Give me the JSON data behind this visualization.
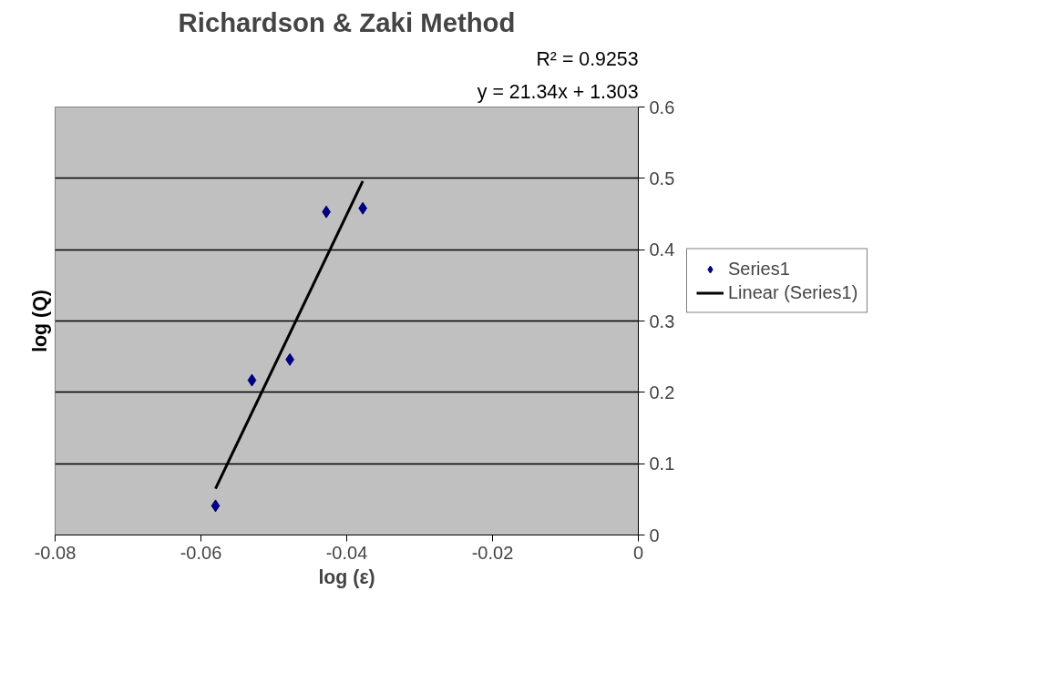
{
  "chart_data": {
    "type": "scatter",
    "title": "Richardson & Zaki Method",
    "xlabel": "log (ε)",
    "ylabel": "log (Q)",
    "annotations": [
      "y = 21.34x + 1.303",
      "R² = 0.9253"
    ],
    "series": [
      {
        "name": "Series1",
        "type": "scatter",
        "color": "#000080",
        "marker": "diamond",
        "x": [
          -0.058,
          -0.053,
          -0.0478,
          -0.0428,
          -0.0378
        ],
        "values": [
          0.041,
          0.217,
          0.246,
          0.453,
          0.458
        ]
      },
      {
        "name": "Linear (Series1)",
        "type": "line",
        "color": "#000000",
        "line_style": "solid",
        "x": [
          -0.058,
          -0.0378
        ],
        "values": [
          0.065,
          0.496
        ]
      }
    ],
    "xlim": [
      -0.08,
      0
    ],
    "xticks": [
      -0.08,
      -0.06,
      -0.04,
      -0.02,
      0
    ],
    "ylim": [
      0,
      0.6
    ],
    "yticks": [
      0,
      0.1,
      0.2,
      0.3,
      0.4,
      0.5,
      0.6
    ],
    "grid": "y",
    "legend": "right"
  }
}
